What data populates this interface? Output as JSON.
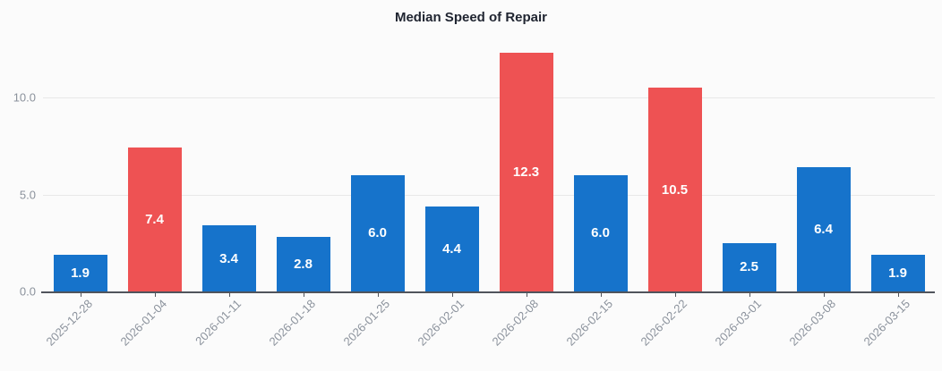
{
  "chart_data": {
    "type": "bar",
    "title": "Median Speed of Repair",
    "xlabel": "",
    "ylabel": "",
    "categories": [
      "2025-12-28",
      "2026-01-04",
      "2026-01-11",
      "2026-01-18",
      "2026-01-25",
      "2026-02-01",
      "2026-02-08",
      "2026-02-15",
      "2026-02-22",
      "2026-03-01",
      "2026-03-08",
      "2026-03-15"
    ],
    "values": [
      1.9,
      7.4,
      3.4,
      2.8,
      6.0,
      4.4,
      12.3,
      6.0,
      10.5,
      2.5,
      6.4,
      1.9
    ],
    "value_labels": [
      "1.9",
      "7.4",
      "3.4",
      "2.8",
      "6.0",
      "4.4",
      "12.3",
      "6.0",
      "10.5",
      "2.5",
      "6.4",
      "1.9"
    ],
    "bar_colors": [
      "#1673cb",
      "#ee5253",
      "#1673cb",
      "#1673cb",
      "#1673cb",
      "#1673cb",
      "#ee5253",
      "#1673cb",
      "#ee5253",
      "#1673cb",
      "#1673cb",
      "#1673cb"
    ],
    "highlight_indices": [
      1,
      6,
      8
    ],
    "yticks": [
      "0.0",
      "5.0",
      "10.0"
    ],
    "ytick_values": [
      0,
      5,
      10
    ],
    "ylim": [
      0,
      12.95
    ],
    "grid": true,
    "legend": false,
    "xtick_rotation_deg": 45,
    "value_label_position": "inside-center"
  },
  "colors": {
    "background": "#fbfbfb",
    "bar_default": "#1673cb",
    "bar_highlight": "#ee5253",
    "grid": "#e8e8e8",
    "axis": "#50545c",
    "tick_label": "#8b929c",
    "title": "#1f2430",
    "value_label": "#ffffff"
  }
}
